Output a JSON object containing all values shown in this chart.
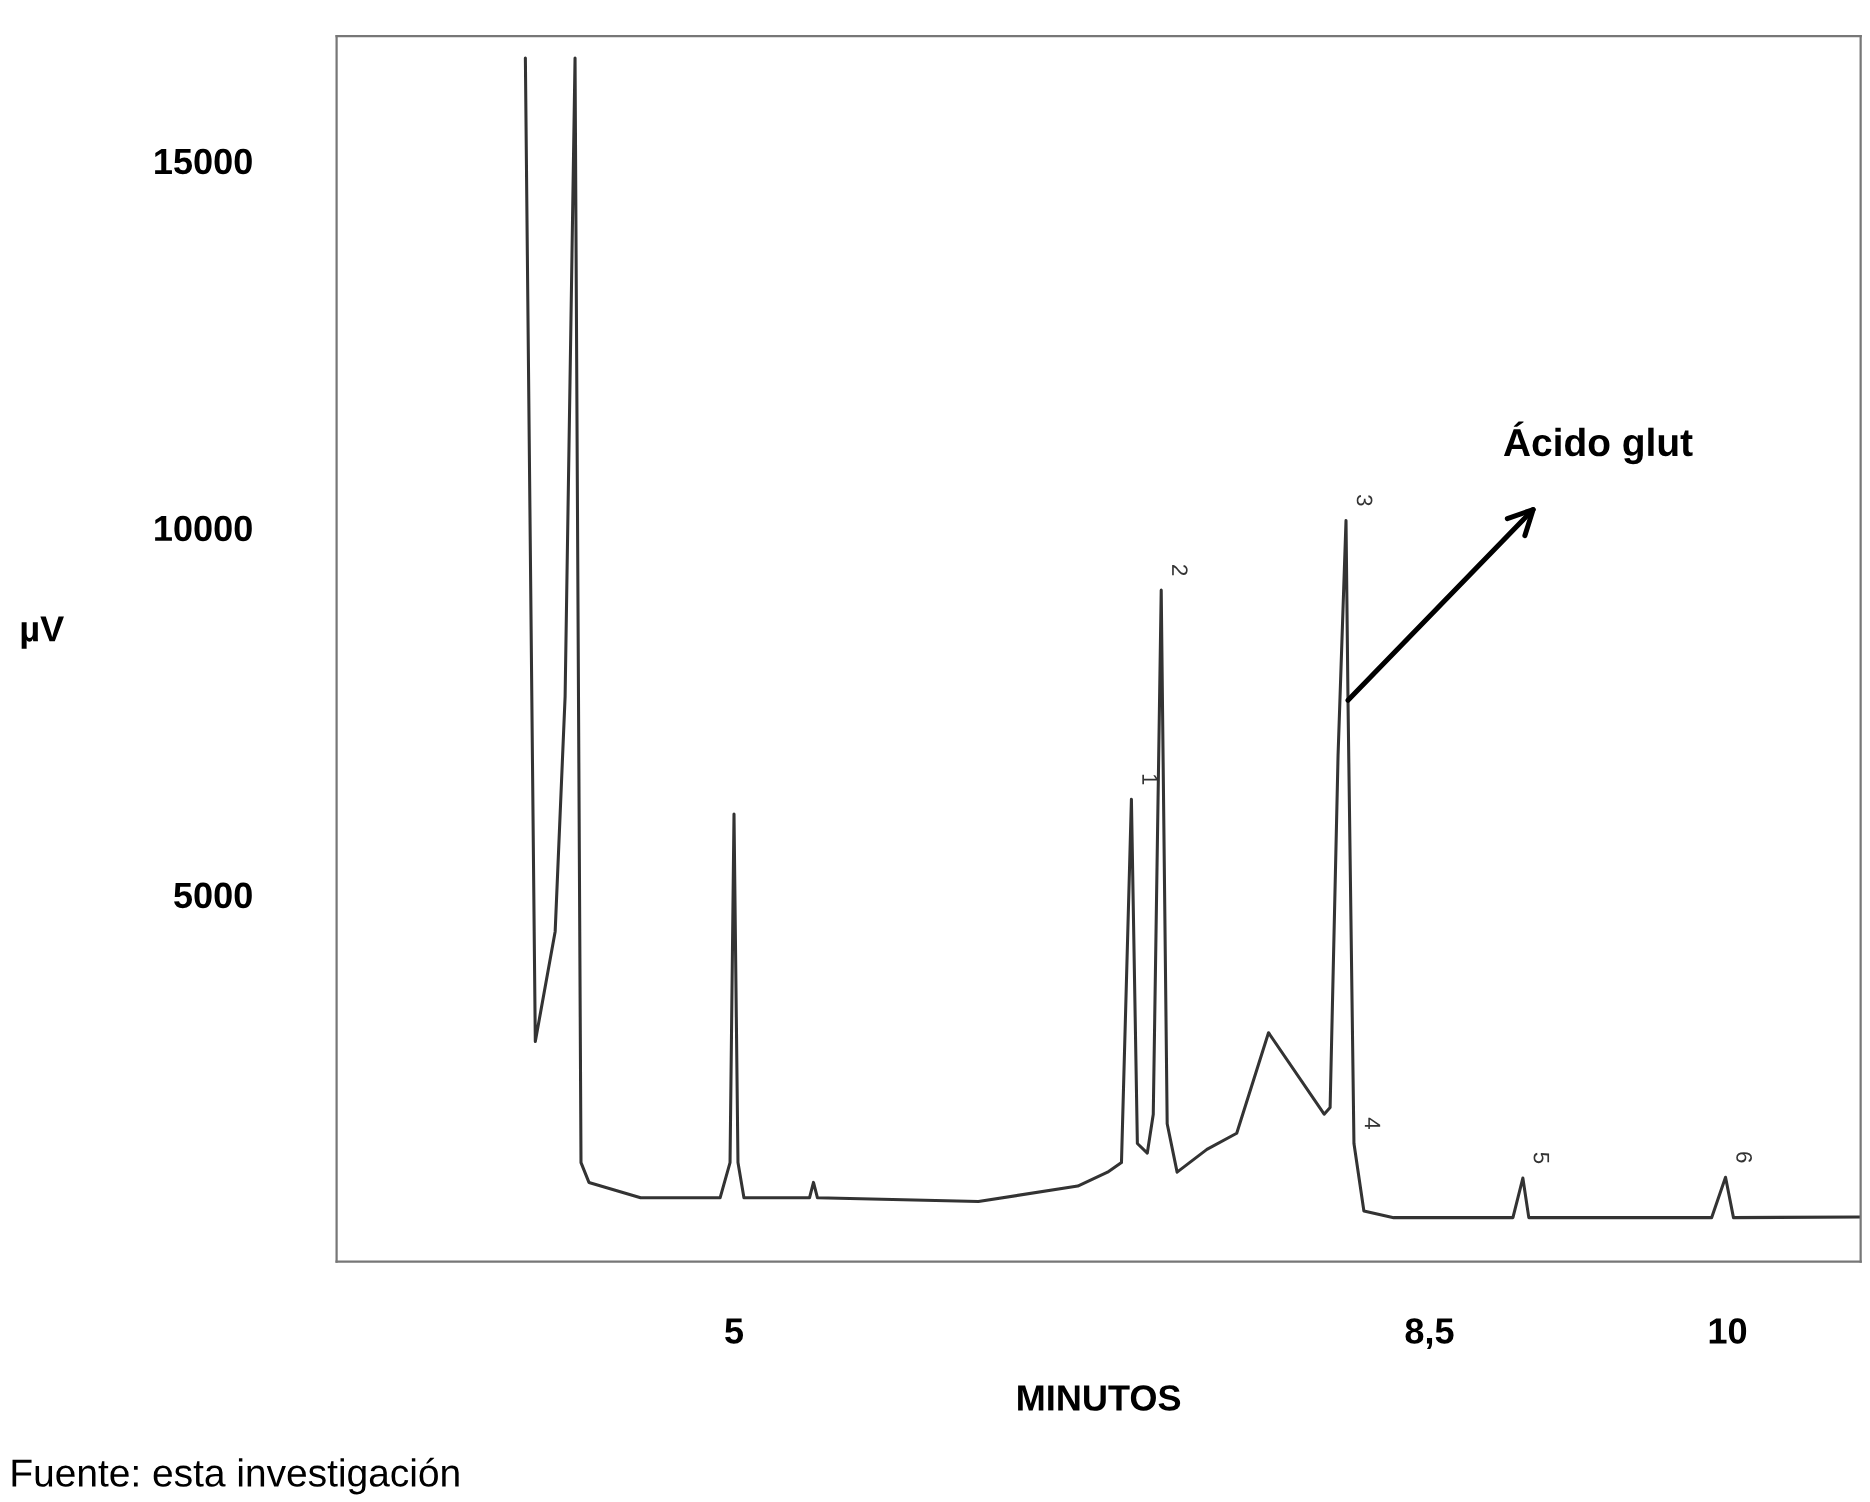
{
  "chart_data": {
    "type": "line",
    "xlabel": "MINUTOS",
    "ylabel": "µV",
    "xlim": [
      3,
      10.67
    ],
    "ylim": [
      0,
      16700
    ],
    "xticks": [
      5,
      {
        "value": 8.5,
        "label": "8,5"
      },
      10
    ],
    "yticks": [
      5000,
      10000,
      15000
    ],
    "grid": false,
    "legend": false,
    "marker": "none",
    "line_style": "solid",
    "series": [
      {
        "color": "#333333",
        "x": [
          3.95,
          4.0,
          4.1,
          4.15,
          4.2,
          4.23,
          4.27,
          4.53,
          4.93,
          4.98,
          5.0,
          5.02,
          5.05,
          5.38,
          5.4,
          5.42,
          6.23,
          6.73,
          6.88,
          6.95,
          7.0,
          7.03,
          7.08,
          7.11,
          7.15,
          7.18,
          7.23,
          7.38,
          7.53,
          7.69,
          7.97,
          8.0,
          8.04,
          8.08,
          8.09,
          8.12,
          8.17,
          8.32,
          8.92,
          8.97,
          9.0,
          9.92,
          9.99,
          10.03,
          10.67
        ],
        "values": [
          16400,
          3000,
          4500,
          7700,
          16400,
          1350,
          1080,
          870,
          870,
          1350,
          6100,
          1350,
          870,
          870,
          1080,
          870,
          820,
          1030,
          1220,
          1350,
          6300,
          1610,
          1480,
          2010,
          9150,
          1880,
          1220,
          1530,
          1750,
          3120,
          2010,
          2100,
          6900,
          10100,
          7650,
          1610,
          690,
          600,
          600,
          1140,
          600,
          600,
          1150,
          600,
          610
        ]
      }
    ],
    "annotations": [
      {
        "text": "1",
        "x": 7.0,
        "y": 6300
      },
      {
        "text": "2",
        "x": 7.15,
        "y": 9150
      },
      {
        "text": "3",
        "x": 8.08,
        "y": 10100
      },
      {
        "text": "4",
        "x": 8.12,
        "y": 1610
      },
      {
        "text": "5",
        "x": 8.97,
        "y": 1140
      },
      {
        "text": "6",
        "x": 9.99,
        "y": 1150
      },
      {
        "text": "Ácido glut",
        "x": 8.09,
        "y": 7650
      },
      "Fuente: esta investigación"
    ]
  }
}
